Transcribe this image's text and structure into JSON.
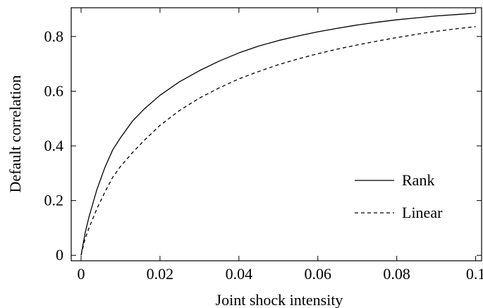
{
  "chart_data": {
    "type": "line",
    "title": "",
    "xlabel": "Joint shock intensity",
    "ylabel": "Default correlation",
    "xlim": [
      -0.0025,
      0.1015
    ],
    "ylim": [
      -0.02,
      0.905
    ],
    "x_ticks": [
      0,
      0.02,
      0.04,
      0.06,
      0.08,
      0.1
    ],
    "x_tick_labels": [
      "0",
      "0.02",
      "0.04",
      "0.06",
      "0.08",
      "0.1"
    ],
    "y_ticks": [
      0,
      0.2,
      0.4,
      0.6,
      0.8
    ],
    "y_tick_labels": [
      "0",
      "0.2",
      "0.4",
      "0.6",
      "0.8"
    ],
    "grid": false,
    "legend_position": "bottom-right",
    "series": [
      {
        "name": "Rank",
        "style": "solid",
        "color": "#000000",
        "x": [
          0,
          0.001,
          0.002,
          0.004,
          0.006,
          0.008,
          0.01,
          0.013,
          0.016,
          0.02,
          0.025,
          0.03,
          0.035,
          0.04,
          0.045,
          0.05,
          0.055,
          0.06,
          0.065,
          0.07,
          0.075,
          0.08,
          0.085,
          0.09,
          0.095,
          0.1
        ],
        "y": [
          0,
          0.08,
          0.14,
          0.24,
          0.32,
          0.385,
          0.43,
          0.49,
          0.535,
          0.585,
          0.635,
          0.675,
          0.71,
          0.74,
          0.765,
          0.785,
          0.802,
          0.817,
          0.83,
          0.842,
          0.852,
          0.861,
          0.868,
          0.875,
          0.88,
          0.885
        ]
      },
      {
        "name": "Linear",
        "style": "dashed",
        "color": "#000000",
        "x": [
          0,
          0.001,
          0.002,
          0.004,
          0.006,
          0.008,
          0.01,
          0.013,
          0.016,
          0.02,
          0.025,
          0.03,
          0.035,
          0.04,
          0.045,
          0.05,
          0.055,
          0.06,
          0.065,
          0.07,
          0.075,
          0.08,
          0.085,
          0.09,
          0.095,
          0.1
        ],
        "y": [
          0,
          0.06,
          0.1,
          0.17,
          0.23,
          0.285,
          0.325,
          0.375,
          0.42,
          0.475,
          0.53,
          0.575,
          0.612,
          0.645,
          0.672,
          0.697,
          0.718,
          0.737,
          0.754,
          0.769,
          0.783,
          0.796,
          0.808,
          0.819,
          0.828,
          0.836
        ]
      }
    ]
  }
}
